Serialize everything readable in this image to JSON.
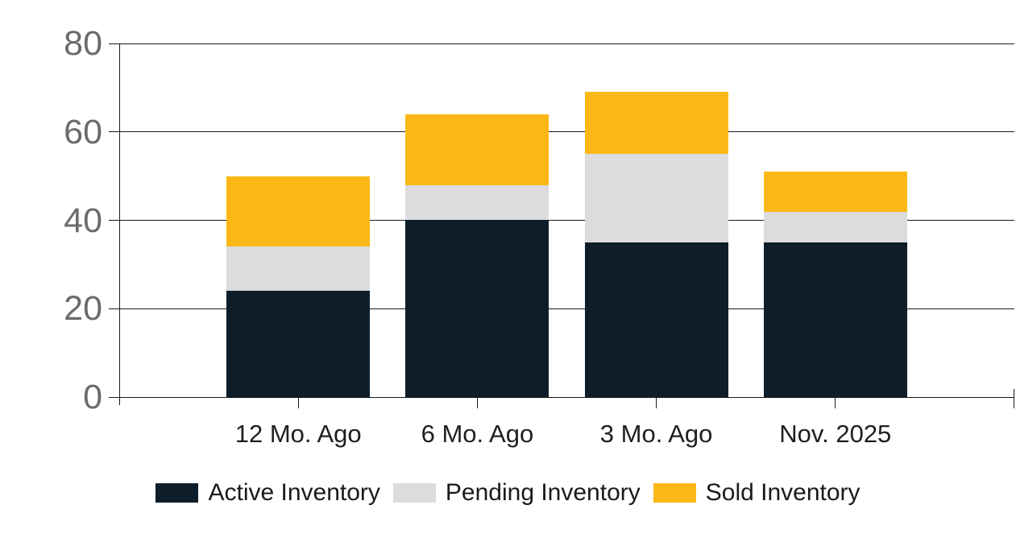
{
  "chart_data": {
    "type": "bar",
    "stacked": true,
    "title": "",
    "xlabel": "",
    "ylabel": "",
    "categories": [
      "12 Mo. Ago",
      "6 Mo. Ago",
      "3 Mo. Ago",
      "Nov. 2025"
    ],
    "series": [
      {
        "name": "Active Inventory",
        "color": "#0D1E2A",
        "values": [
          24,
          40,
          35,
          35
        ]
      },
      {
        "name": "Pending Inventory",
        "color": "#DCDCDC",
        "values": [
          10,
          8,
          20,
          7
        ]
      },
      {
        "name": "Sold Inventory",
        "color": "#FBB817",
        "values": [
          16,
          16,
          14,
          9
        ]
      }
    ],
    "totals": [
      50,
      64,
      69,
      51
    ],
    "ylim": [
      0,
      80
    ],
    "yticks": [
      0,
      20,
      40,
      60,
      80
    ],
    "grid": true,
    "legend_position": "bottom",
    "colors": {
      "axis": "#1A1A1A",
      "gridline": "#1A1A1A",
      "ytick_label": "#6B6B6B",
      "xtick_label": "#1F1F1F",
      "background": "#FFFFFF"
    }
  }
}
